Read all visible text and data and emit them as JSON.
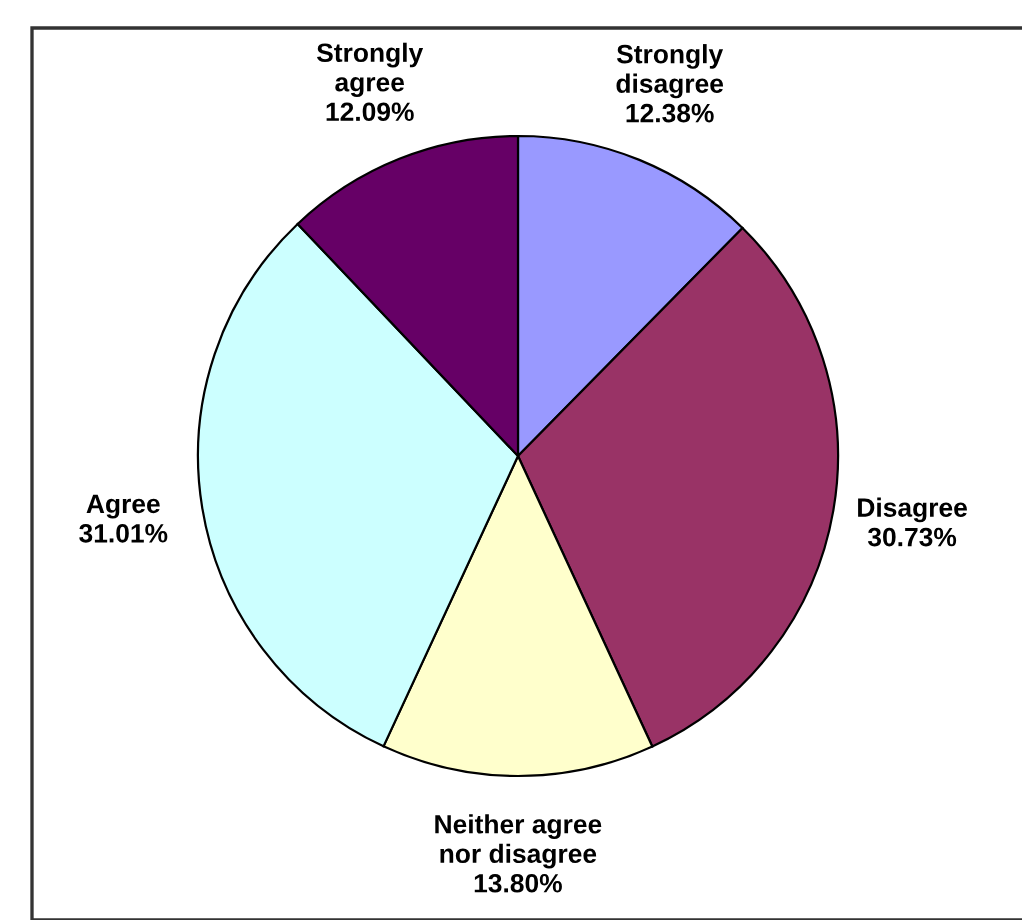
{
  "chart_data": {
    "type": "pie",
    "categories": [
      "Strongly\ndisagree",
      "Disagree",
      "Neither agree\nnor disagree",
      "Agree",
      "Strongly\nagree"
    ],
    "values": [
      12.38,
      30.73,
      13.8,
      31.01,
      12.09
    ],
    "value_labels": [
      "12.38%",
      "30.73%",
      "13.80%",
      "31.01%",
      "12.09%"
    ],
    "colors": [
      "#9999ff",
      "#993366",
      "#ffffcc",
      "#ccffff",
      "#660066"
    ]
  }
}
